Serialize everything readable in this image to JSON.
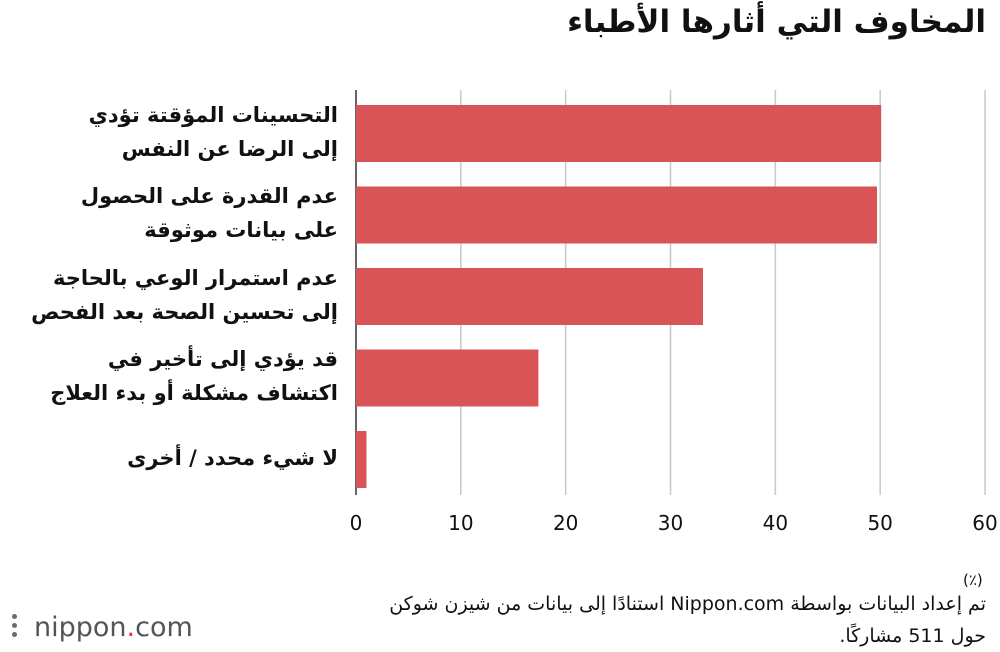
{
  "title": "المخاوف التي أثارها الأطباء",
  "chart_data": {
    "type": "bar",
    "orientation": "horizontal",
    "categories": [
      [
        "التحسينات المؤقتة تؤدي",
        "إلى الرضا عن النفس"
      ],
      [
        "عدم القدرة على الحصول",
        "على بيانات موثوقة"
      ],
      [
        "عدم استمرار الوعي بالحاجة",
        "إلى تحسين الصحة بعد الفحص"
      ],
      [
        "قد يؤدي إلى تأخير في",
        "اكتشاف مشكلة أو بدء العلاج"
      ],
      [
        "لا شيء محدد / أخرى"
      ]
    ],
    "values": [
      50.1,
      49.7,
      33.1,
      17.4,
      1.0
    ],
    "xlim": [
      0,
      60
    ],
    "ticks": [
      0,
      10,
      20,
      30,
      40,
      50,
      60
    ],
    "unit": "(٪)",
    "grid": true,
    "bar_color": "#d95457",
    "grid_color": "#c8c8c8"
  },
  "note": [
    "تم إعداد البيانات بواسطة Nippon.com استنادًا إلى بيانات من شيزن شوكن",
    "حول 511 مشاركًا."
  ],
  "logo": {
    "text": "nippon",
    "dot": ".",
    "suffix": "com",
    "dot_color": "#d8363a"
  }
}
